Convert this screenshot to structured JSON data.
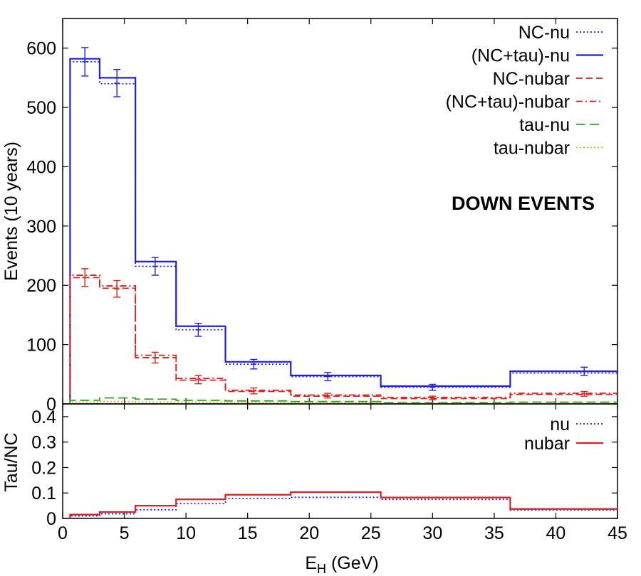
{
  "colors": {
    "blue": "#1f1fe0",
    "red": "#e01f1f",
    "green": "#2aa52a",
    "orange": "#e0a800",
    "axis": "#000000"
  },
  "chart_data": [
    {
      "type": "line",
      "panel": "top",
      "ylabel": "Events (10 years)",
      "xlim": [
        0,
        45
      ],
      "ylim": [
        0,
        650
      ],
      "x_ticks": [
        0,
        5,
        10,
        15,
        20,
        25,
        30,
        35,
        40,
        45
      ],
      "y_ticks": [
        0,
        100,
        200,
        300,
        400,
        500,
        600
      ],
      "annotation": "DOWN EVENTS",
      "legend_position": "top-right",
      "bin_edges": [
        0.6,
        3.0,
        5.9,
        9.2,
        13.2,
        18.5,
        25.8,
        36.3,
        45
      ],
      "series": [
        {
          "name": "NC-nu",
          "style": "dotted",
          "color": "blue",
          "values": [
            577,
            540,
            232,
            125,
            67,
            46,
            28,
            52
          ]
        },
        {
          "name": "(NC+tau)-nu",
          "style": "solid",
          "color": "blue",
          "values": [
            582,
            550,
            240,
            131,
            71,
            48,
            30,
            55
          ]
        },
        {
          "name": "NC-nubar",
          "style": "dashed",
          "color": "red",
          "values": [
            213,
            195,
            78,
            40,
            21,
            13,
            9,
            16
          ]
        },
        {
          "name": "(NC+tau)-nubar",
          "style": "dashdot",
          "color": "red",
          "values": [
            217,
            199,
            82,
            43,
            23,
            15,
            11,
            18
          ]
        },
        {
          "name": "tau-nu",
          "style": "longdash",
          "color": "green",
          "values": [
            6,
            10,
            8,
            6,
            5,
            4,
            2,
            3
          ]
        },
        {
          "name": "tau-nubar",
          "style": "dotted",
          "color": "orange",
          "values": [
            3,
            4,
            3,
            3,
            2,
            2,
            1,
            1
          ]
        }
      ],
      "error_bars": [
        {
          "color": "blue",
          "x": [
            1.8,
            4.4,
            7.5,
            11.0,
            15.5,
            21.5,
            30.0,
            42.3
          ],
          "y": [
            577,
            541,
            232,
            125,
            67,
            46,
            28,
            55
          ],
          "err": [
            24,
            23,
            15,
            11,
            8,
            7,
            5,
            7
          ]
        },
        {
          "color": "red",
          "x": [
            1.8,
            4.4,
            7.5,
            11.0,
            15.5,
            21.5,
            30.0,
            42.3
          ],
          "y": [
            213,
            194,
            78,
            41,
            22,
            14,
            10,
            17
          ],
          "err": [
            15,
            14,
            9,
            7,
            5,
            4,
            3,
            4
          ]
        }
      ]
    },
    {
      "type": "line",
      "panel": "bottom",
      "ylabel": "Tau/NC",
      "xlabel_main": "E",
      "xlabel_sub": "H",
      "xlabel_unit": " (GeV)",
      "xlim": [
        0,
        45
      ],
      "ylim": [
        0,
        0.45
      ],
      "x_ticks": [
        0,
        5,
        10,
        15,
        20,
        25,
        30,
        35,
        40,
        45
      ],
      "y_ticks": [
        0,
        0.1,
        0.2,
        0.3,
        0.4
      ],
      "y_tick_labels": [
        "0",
        "0.1",
        "0.2",
        "0.3",
        "0.4"
      ],
      "legend_position": "top-right",
      "bin_edges": [
        0.6,
        3.0,
        5.9,
        9.2,
        13.2,
        18.5,
        25.8,
        36.3,
        45
      ],
      "series": [
        {
          "name": "nu",
          "style": "dotted",
          "color": "blue",
          "values": [
            0.01,
            0.018,
            0.034,
            0.058,
            0.078,
            0.083,
            0.075,
            0.033
          ]
        },
        {
          "name": "nubar",
          "style": "solid",
          "color": "red",
          "values": [
            0.015,
            0.025,
            0.05,
            0.075,
            0.093,
            0.103,
            0.082,
            0.037
          ]
        }
      ]
    }
  ]
}
